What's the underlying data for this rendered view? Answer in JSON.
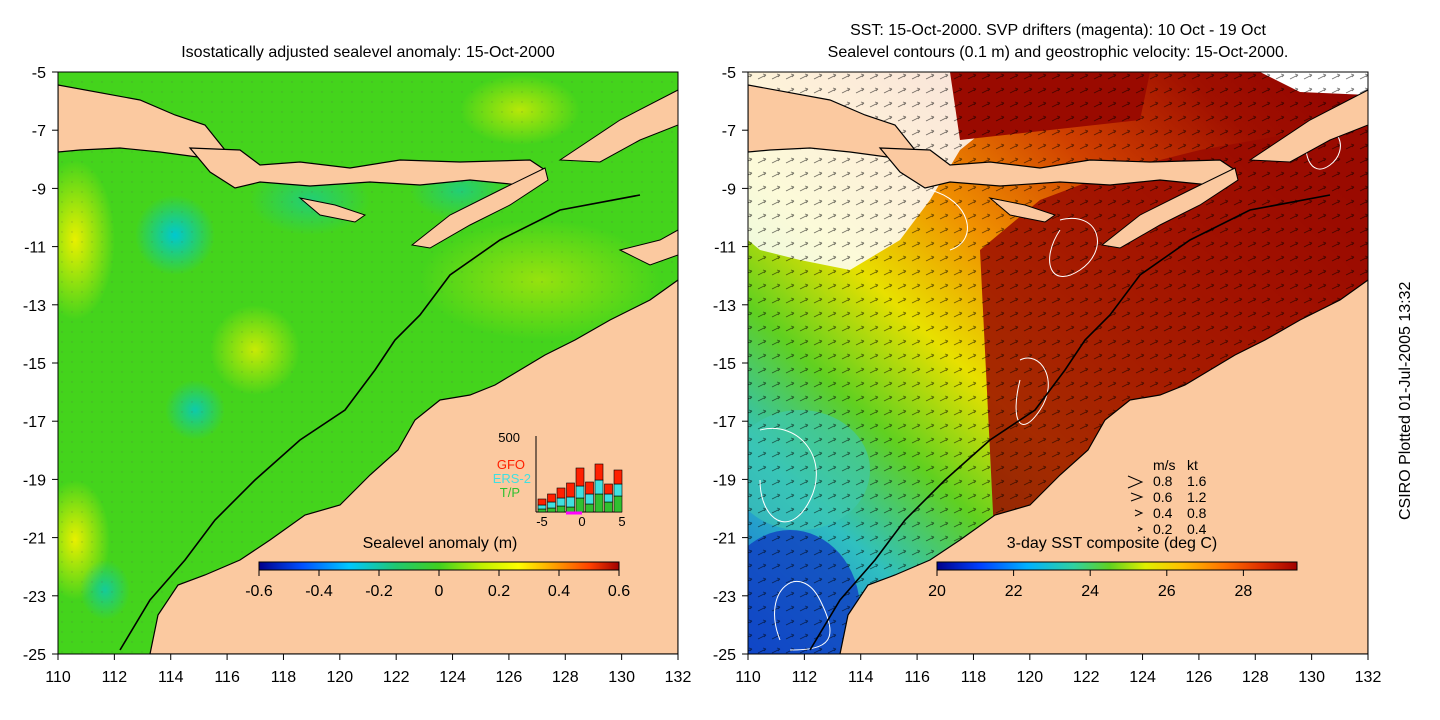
{
  "left_panel": {
    "title": "Isostatically adjusted sealevel anomaly: 15-Oct-2000",
    "colorbar": {
      "label": "Sealevel anomaly (m)",
      "ticks": [
        "-0.6",
        "-0.4",
        "-0.2",
        "0",
        "0.2",
        "0.4",
        "0.6"
      ],
      "colors": [
        "#00008b",
        "#0050ff",
        "#00c8ff",
        "#20d080",
        "#30d020",
        "#b0f000",
        "#ffff00",
        "#ffa000",
        "#ff4000",
        "#a00000"
      ]
    },
    "inset": {
      "ymax_label": "500",
      "legend": [
        "GFO",
        "ERS-2",
        "T/P"
      ],
      "legend_colors": [
        "#ff2000",
        "#40e0e0",
        "#30c030"
      ],
      "xticks": [
        "-5",
        "0",
        "5"
      ]
    }
  },
  "right_panel": {
    "title_line1": "SST: 15-Oct-2000. SVP drifters (magenta): 10 Oct - 19 Oct",
    "title_line2": "Sealevel contours (0.1 m) and geostrophic velocity: 15-Oct-2000.",
    "colorbar": {
      "label": "3-day SST composite (deg C)",
      "ticks": [
        "20",
        "22",
        "24",
        "26",
        "28"
      ],
      "colors": [
        "#00008b",
        "#0040ff",
        "#00b0ff",
        "#30d0a0",
        "#60d020",
        "#e0f000",
        "#ffc000",
        "#ff7000",
        "#e03000",
        "#a00000"
      ]
    },
    "speed_legend": {
      "header_ms": "m/s",
      "header_kt": "kt",
      "rows": [
        {
          "ms": "0.8",
          "kt": "1.6"
        },
        {
          "ms": "0.6",
          "kt": "1.2"
        },
        {
          "ms": "0.4",
          "kt": "0.8"
        },
        {
          "ms": "0.2",
          "kt": "0.4"
        }
      ]
    }
  },
  "axes": {
    "lat_labels": [
      "-5",
      "-7",
      "-9",
      "-11",
      "-13",
      "-15",
      "-17",
      "-19",
      "-21",
      "-23",
      "-25"
    ],
    "lon_labels": [
      "110",
      "112",
      "114",
      "116",
      "118",
      "120",
      "122",
      "124",
      "126",
      "128",
      "130",
      "132"
    ]
  },
  "footer": "CSIRO Plotted 01-Jul-2005 13:32"
}
